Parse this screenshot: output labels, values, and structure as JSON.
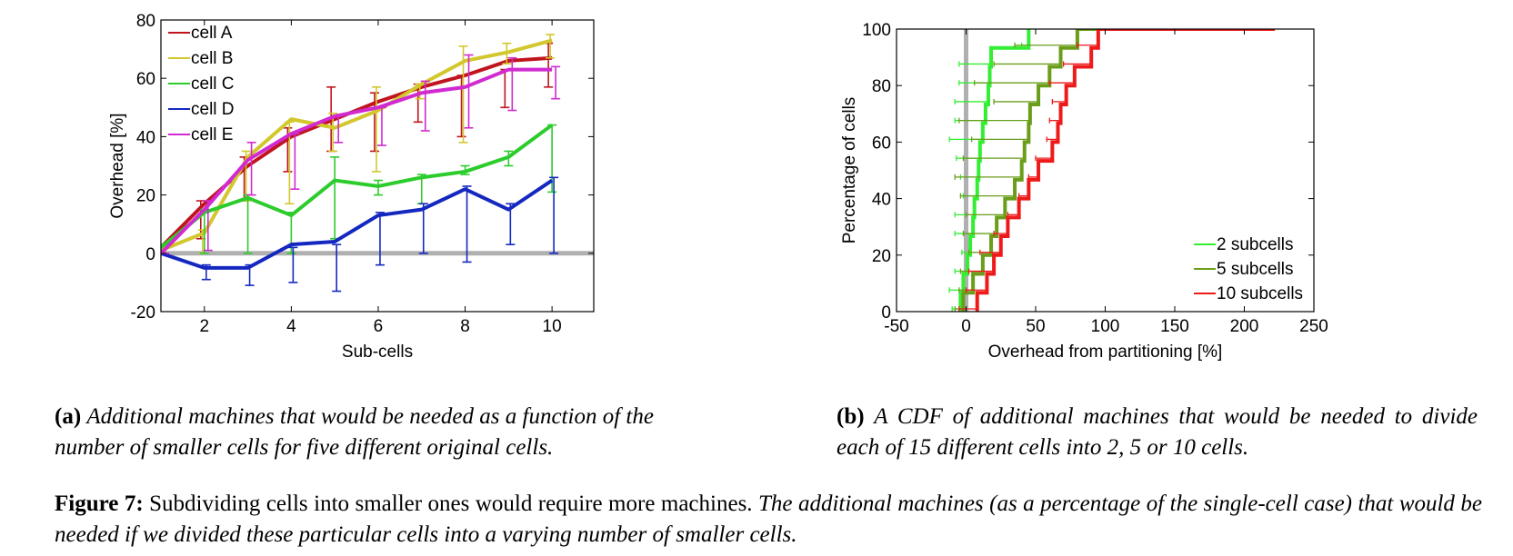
{
  "charts": [
    {
      "id": "a",
      "type": "line",
      "xlabel": "Sub-cells",
      "ylabel": "Overhead [%]",
      "xlim": [
        1,
        10.96
      ],
      "ylim": [
        -20,
        80
      ],
      "xticks": [
        2,
        4,
        6,
        8,
        10
      ],
      "yticks": [
        -20,
        0,
        20,
        40,
        60,
        80
      ],
      "reference_line": {
        "axis": "y",
        "value": 0,
        "color": "#b0b0b0"
      },
      "legend": {
        "position": "top-left"
      },
      "series": [
        {
          "name": "cell A",
          "color": "#c0141e",
          "x": [
            1,
            2,
            3,
            4,
            5,
            6,
            7,
            8,
            9,
            10
          ],
          "y": [
            2,
            17,
            30,
            40,
            46,
            52,
            57,
            61,
            66,
            67
          ],
          "err": [
            [
              1,
              3
            ],
            [
              5,
              18
            ],
            [
              18,
              33
            ],
            [
              28,
              43
            ],
            [
              35,
              57
            ],
            [
              35,
              55
            ],
            [
              45,
              58
            ],
            [
              40,
              61
            ],
            [
              50,
              63
            ],
            [
              57,
              72
            ]
          ]
        },
        {
          "name": "cell B",
          "color": "#d2c72c",
          "x": [
            1,
            2,
            3,
            4,
            5,
            6,
            7,
            8,
            9,
            10
          ],
          "y": [
            1,
            7,
            33,
            46,
            43,
            49,
            58,
            66,
            69,
            73
          ],
          "err": [
            [
              0,
              1
            ],
            [
              0,
              8
            ],
            [
              18,
              35
            ],
            [
              17,
              45
            ],
            [
              35,
              48
            ],
            [
              28,
              57
            ],
            [
              53,
              58
            ],
            [
              38,
              71
            ],
            [
              65,
              72
            ],
            [
              67,
              75
            ]
          ]
        },
        {
          "name": "cell C",
          "color": "#2ccc2c",
          "x": [
            1,
            2,
            3,
            4,
            5,
            6,
            7,
            8,
            9,
            10
          ],
          "y": [
            2,
            14,
            19,
            13,
            25,
            23,
            26,
            28,
            33,
            44
          ],
          "err": [
            [
              1,
              3
            ],
            [
              0,
              15
            ],
            [
              0,
              20
            ],
            [
              0,
              14
            ],
            [
              5,
              33
            ],
            [
              20,
              25
            ],
            [
              17,
              27
            ],
            [
              27,
              30
            ],
            [
              30,
              35
            ],
            [
              21,
              44
            ]
          ]
        },
        {
          "name": "cell D",
          "color": "#1428c0",
          "x": [
            1,
            2,
            3,
            4,
            5,
            6,
            7,
            8,
            9,
            10
          ],
          "y": [
            0,
            -5,
            -5,
            3,
            4,
            13,
            15,
            22,
            15,
            25
          ],
          "err": [
            [
              0,
              0
            ],
            [
              -9,
              -4
            ],
            [
              -11,
              -4
            ],
            [
              -10,
              2
            ],
            [
              -13,
              3
            ],
            [
              -4,
              14
            ],
            [
              0,
              17
            ],
            [
              -3,
              23
            ],
            [
              3,
              17
            ],
            [
              0,
              26
            ]
          ]
        },
        {
          "name": "cell E",
          "color": "#d02ad0",
          "x": [
            1,
            2,
            3,
            4,
            5,
            6,
            7,
            8,
            9,
            10
          ],
          "y": [
            0,
            15,
            32,
            41,
            47,
            50,
            55,
            57,
            63,
            63
          ],
          "err": [
            [
              0,
              0
            ],
            [
              1,
              18
            ],
            [
              20,
              38
            ],
            [
              22,
              41
            ],
            [
              38,
              47
            ],
            [
              37,
              50
            ],
            [
              42,
              59
            ],
            [
              43,
              68
            ],
            [
              49,
              67
            ],
            [
              53,
              64
            ]
          ]
        }
      ]
    },
    {
      "id": "b",
      "type": "line",
      "xlabel": "Overhead from partitioning [%]",
      "ylabel": "Percentage of cells",
      "xlim": [
        -50,
        250
      ],
      "ylim": [
        0,
        100
      ],
      "xticks": [
        -50,
        0,
        50,
        100,
        150,
        200,
        250
      ],
      "yticks": [
        0,
        20,
        40,
        60,
        80,
        100
      ],
      "reference_line": {
        "axis": "x",
        "value": 0,
        "color": "#b0b0b0"
      },
      "legend": {
        "position": "bottom-right"
      },
      "series": [
        {
          "name": "2 subcells",
          "color": "#33ee33",
          "x": [
            -4,
            -2,
            1,
            3,
            5,
            6,
            8,
            9,
            10,
            12,
            14,
            16,
            17,
            18,
            45,
            46
          ],
          "y": [
            0,
            6.67,
            13.33,
            20,
            26.67,
            33.33,
            40,
            46.67,
            53.33,
            60,
            66.67,
            73.33,
            80,
            86.67,
            93.33,
            100
          ],
          "err_low": [
            -10,
            -12,
            -8,
            -3,
            -8,
            -8,
            -2,
            -4,
            -7,
            -12,
            -8,
            -8,
            -5,
            -5,
            40,
            0
          ]
        },
        {
          "name": "5 subcells",
          "color": "#6a9e1a",
          "x": [
            -2,
            5,
            12,
            18,
            22,
            28,
            35,
            40,
            42,
            45,
            46,
            52,
            60,
            68,
            80,
            140
          ],
          "y": [
            0,
            6.67,
            13.33,
            20,
            26.67,
            33.33,
            40,
            46.67,
            53.33,
            60,
            66.67,
            73.33,
            80,
            86.67,
            93.33,
            100
          ],
          "err_low": [
            -8,
            -5,
            -4,
            2,
            -2,
            0,
            -4,
            -8,
            -2,
            4,
            -5,
            20,
            6,
            20,
            35,
            95
          ]
        },
        {
          "name": "10 subcells",
          "color": "#ee1a1a",
          "x": [
            8,
            15,
            20,
            25,
            30,
            38,
            45,
            52,
            62,
            66,
            68,
            72,
            78,
            90,
            95,
            105,
            222
          ],
          "y": [
            0,
            6.67,
            13.33,
            20,
            26.67,
            33.33,
            40,
            46.67,
            53.33,
            60,
            66.67,
            73.33,
            80,
            86.67,
            93.33,
            100,
            100
          ],
          "err_low": [
            -5,
            0,
            2,
            10,
            20,
            30,
            38,
            45,
            50,
            58,
            60,
            62,
            60,
            70,
            80,
            130,
            130
          ]
        }
      ]
    }
  ],
  "captions": {
    "a_label": "(a)",
    "a_text": "Additional machines that would be needed as a function of the number of smaller cells for five different original cells.",
    "b_label": "(b)",
    "b_text": "A CDF of additional machines that would be needed to divide each of 15 different cells into 2, 5 or 10 cells.",
    "figure_label": "Figure 7:",
    "figure_text_plain": "Subdividing cells into smaller ones would require more machines.",
    "figure_text_italic": "The additional machines (as a percentage of the single-cell case) that would be needed if we divided these particular cells into a varying number of smaller cells."
  }
}
